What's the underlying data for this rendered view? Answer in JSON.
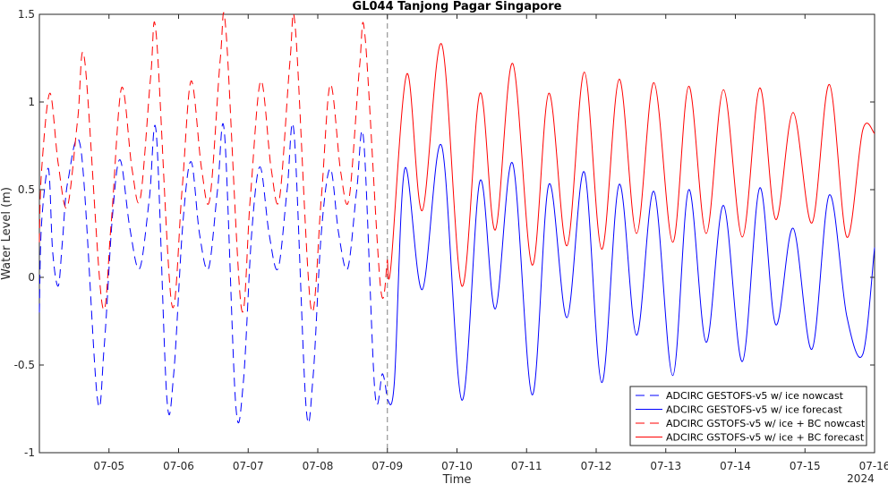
{
  "chart_data": {
    "type": "line",
    "title": "GL044 Tanjong Pagar Singapore",
    "xlabel": "Time",
    "ylabel": "Water Level (m)",
    "x_tick_labels": [
      "07-05",
      "07-06",
      "07-07",
      "07-08",
      "07-09",
      "07-10",
      "07-11",
      "07-12",
      "07-13",
      "07-14",
      "07-15",
      "07-16"
    ],
    "x_year_label": "2024",
    "xlim_days": [
      4.0,
      16.0
    ],
    "ylim": [
      -1,
      1.5
    ],
    "y_ticks": [
      -1,
      -0.5,
      0,
      0.5,
      1,
      1.5
    ],
    "y_tick_labels": [
      "-1",
      "-0.5",
      "0",
      "0.5",
      "1",
      "1.5"
    ],
    "nowcast_forecast_boundary": "07-09",
    "grid": false,
    "legend_position": "bottom-right",
    "series": [
      {
        "name": "ADCIRC GESTOFS-v5 w/ ice nowcast",
        "color": "#0000ff",
        "dash": "dashed",
        "x": [
          4.0,
          4.03,
          4.13,
          4.19,
          4.27,
          4.33,
          4.41,
          4.6,
          4.83,
          4.93,
          5.05,
          5.16,
          5.3,
          5.44,
          5.58,
          5.68,
          5.83,
          5.93,
          6.06,
          6.18,
          6.3,
          6.43,
          6.56,
          6.66,
          6.82,
          6.93,
          7.05,
          7.17,
          7.3,
          7.43,
          7.56,
          7.66,
          7.83,
          7.93,
          8.05,
          8.18,
          8.3,
          8.43,
          8.56,
          8.66,
          8.82,
          8.93,
          9.0
        ],
        "y": [
          -0.2,
          0.3,
          0.62,
          0.15,
          -0.05,
          0.2,
          0.55,
          0.72,
          -0.68,
          -0.4,
          0.35,
          0.67,
          0.28,
          0.05,
          0.45,
          0.82,
          -0.68,
          -0.55,
          0.3,
          0.66,
          0.25,
          0.05,
          0.5,
          0.82,
          -0.72,
          -0.6,
          0.25,
          0.63,
          0.25,
          0.05,
          0.5,
          0.82,
          -0.73,
          -0.58,
          0.25,
          0.62,
          0.25,
          0.05,
          0.5,
          0.78,
          -0.65,
          -0.55,
          -0.7
        ]
      },
      {
        "name": "ADCIRC GESTOFS-v5 w/ ice forecast",
        "color": "#0000ff",
        "dash": "solid",
        "x": [
          9.0,
          9.1,
          9.25,
          9.5,
          9.78,
          10.07,
          10.33,
          10.55,
          10.8,
          11.08,
          11.32,
          11.58,
          11.83,
          12.08,
          12.33,
          12.58,
          12.83,
          13.1,
          13.33,
          13.58,
          13.83,
          14.1,
          14.35,
          14.58,
          14.83,
          15.1,
          15.35,
          15.6,
          15.83,
          16.0
        ],
        "y": [
          -0.7,
          -0.6,
          0.62,
          -0.07,
          0.75,
          -0.7,
          0.55,
          -0.18,
          0.65,
          -0.67,
          0.53,
          -0.23,
          0.6,
          -0.6,
          0.53,
          -0.33,
          0.49,
          -0.56,
          0.5,
          -0.37,
          0.41,
          -0.48,
          0.51,
          -0.27,
          0.28,
          -0.41,
          0.47,
          -0.22,
          -0.44,
          0.17
        ]
      },
      {
        "name": "ADCIRC GSTOFS-v5 w/ ice + BC nowcast",
        "color": "#ff0000",
        "dash": "dashed",
        "x": [
          4.0,
          4.03,
          4.15,
          4.27,
          4.4,
          4.55,
          4.65,
          4.9,
          5.03,
          5.18,
          5.33,
          5.45,
          5.6,
          5.68,
          5.9,
          6.05,
          6.18,
          6.33,
          6.45,
          6.6,
          6.68,
          6.9,
          7.03,
          7.18,
          7.33,
          7.45,
          7.6,
          7.68,
          7.9,
          8.05,
          8.18,
          8.33,
          8.45,
          8.6,
          8.68,
          8.9,
          9.0
        ],
        "y": [
          0.2,
          0.6,
          1.05,
          0.65,
          0.4,
          0.9,
          1.24,
          -0.15,
          0.3,
          1.08,
          0.62,
          0.45,
          1.15,
          1.38,
          -0.15,
          0.5,
          1.12,
          0.62,
          0.45,
          1.25,
          1.41,
          -0.17,
          0.45,
          1.12,
          0.62,
          0.45,
          1.23,
          1.41,
          -0.17,
          0.45,
          1.1,
          0.6,
          0.45,
          1.2,
          1.37,
          -0.05,
          0.1
        ]
      },
      {
        "name": "ADCIRC GSTOFS-v5 w/ ice + BC forecast",
        "color": "#ff0000",
        "dash": "solid",
        "x": [
          9.0,
          9.05,
          9.28,
          9.5,
          9.78,
          10.07,
          10.33,
          10.55,
          10.8,
          11.08,
          11.32,
          11.58,
          11.83,
          12.08,
          12.33,
          12.58,
          12.83,
          13.1,
          13.33,
          13.58,
          13.83,
          14.1,
          14.35,
          14.58,
          14.83,
          15.1,
          15.35,
          15.6,
          15.83,
          16.0
        ],
        "y": [
          0.1,
          0.06,
          1.16,
          0.38,
          1.33,
          -0.05,
          1.05,
          0.27,
          1.22,
          0.07,
          1.05,
          0.18,
          1.17,
          0.16,
          1.13,
          0.25,
          1.11,
          0.2,
          1.09,
          0.25,
          1.07,
          0.23,
          1.08,
          0.33,
          0.94,
          0.31,
          1.1,
          0.23,
          0.84,
          0.82
        ]
      }
    ]
  }
}
